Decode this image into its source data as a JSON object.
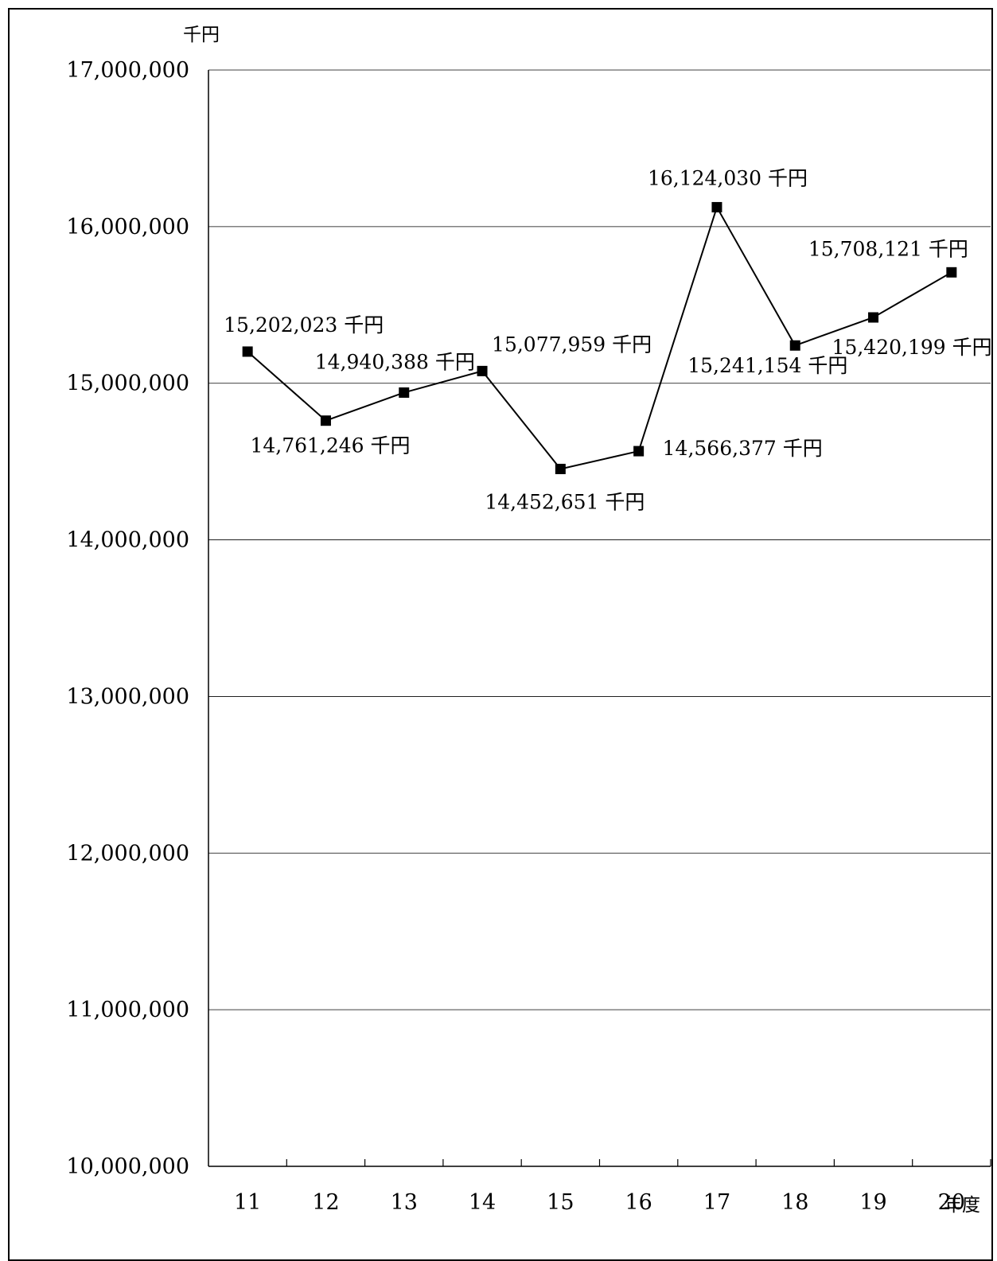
{
  "chart_data": {
    "type": "line",
    "x_unit_label": "年度",
    "y_unit_label": "千円",
    "categories": [
      "11",
      "12",
      "13",
      "14",
      "15",
      "16",
      "17",
      "18",
      "19",
      "20"
    ],
    "series": [
      {
        "values": [
          15202023,
          14761246,
          14940388,
          15077959,
          14452651,
          14566377,
          16124030,
          15241154,
          15420199,
          15708121
        ],
        "color": "#000000",
        "marker": "square"
      }
    ],
    "data_labels": [
      "15,202,023 千円",
      "14,761,246 千円",
      "14,940,388 千円",
      "15,077,959 千円",
      "14,452,651 千円",
      "14,566,377 千円",
      "16,124,030 千円",
      "15,241,154 千円",
      "15,420,199 千円",
      "15,708,121 千円"
    ],
    "y_ticks": [
      "10,000,000",
      "11,000,000",
      "12,000,000",
      "13,000,000",
      "14,000,000",
      "15,000,000",
      "16,000,000",
      "17,000,000"
    ],
    "ylim": [
      10000000,
      17000000
    ],
    "grid": true,
    "legend": "none"
  }
}
